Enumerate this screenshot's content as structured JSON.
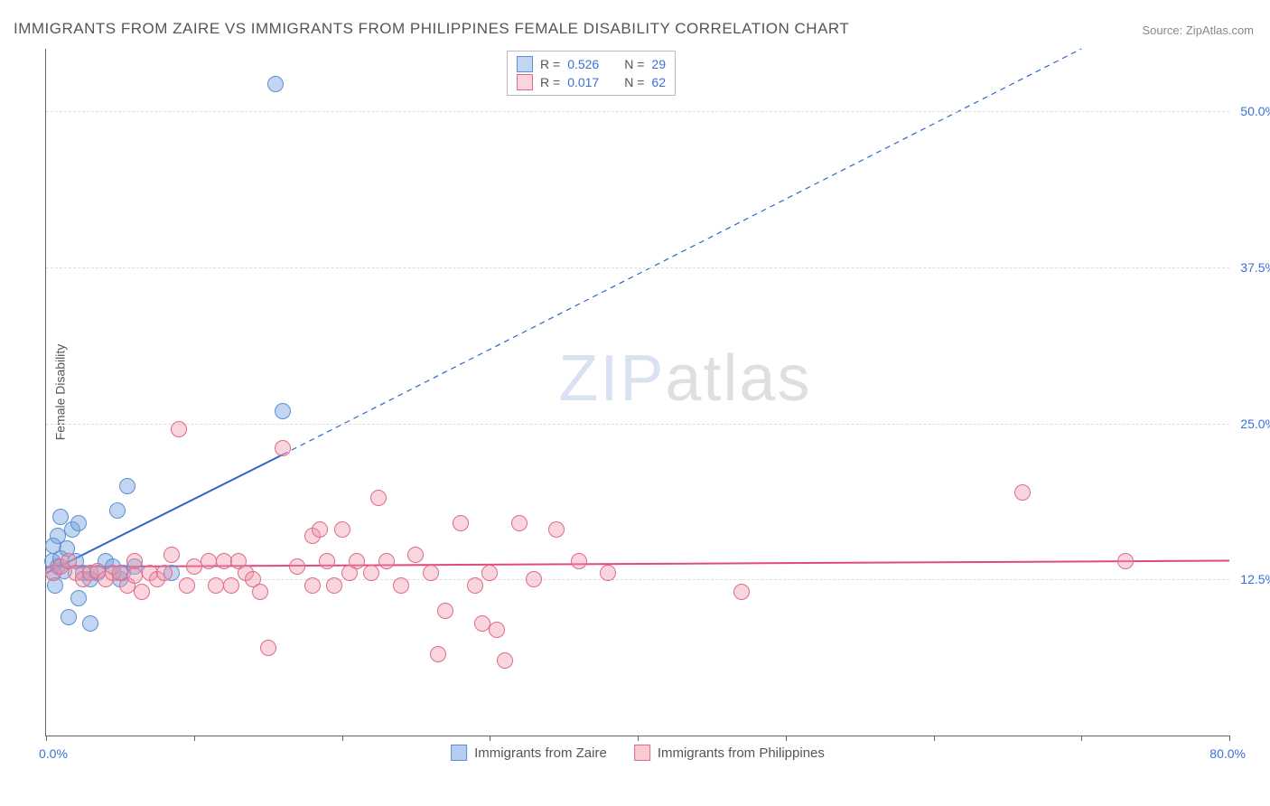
{
  "title": "IMMIGRANTS FROM ZAIRE VS IMMIGRANTS FROM PHILIPPINES FEMALE DISABILITY CORRELATION CHART",
  "source": "Source: ZipAtlas.com",
  "watermark_zip": "ZIP",
  "watermark_atlas": "atlas",
  "y_axis_label": "Female Disability",
  "chart": {
    "type": "scatter",
    "xlim": [
      0,
      80
    ],
    "ylim": [
      0,
      55
    ],
    "x_start_label": "0.0%",
    "x_end_label": "80.0%",
    "x_ticks": [
      0,
      10,
      20,
      30,
      40,
      50,
      60,
      70,
      80
    ],
    "y_gridlines": [
      {
        "value": 12.5,
        "label": "12.5%"
      },
      {
        "value": 25.0,
        "label": "25.0%"
      },
      {
        "value": 37.5,
        "label": "37.5%"
      },
      {
        "value": 50.0,
        "label": "50.0%"
      }
    ],
    "background_color": "#ffffff",
    "grid_color": "#dddddd",
    "axis_color": "#666666",
    "tick_label_color": "#3b6fd6",
    "point_radius": 8,
    "series": [
      {
        "name": "Immigrants from Zaire",
        "fill": "rgba(120,165,225,0.45)",
        "stroke": "#5b8fd6",
        "R_label": "R =",
        "R": "0.526",
        "N_label": "N =",
        "N": "29",
        "reg_color": "#2f66c9",
        "reg_width": 2,
        "reg_solid": {
          "x1": 0,
          "y1": 13.0,
          "x2": 16,
          "y2": 22.5
        },
        "reg_dash": {
          "x1": 16,
          "y1": 22.5,
          "x2": 70,
          "y2": 55
        },
        "points": [
          [
            0.5,
            13.0
          ],
          [
            0.8,
            13.5
          ],
          [
            0.4,
            14.0
          ],
          [
            1.0,
            14.2
          ],
          [
            0.6,
            12.0
          ],
          [
            1.2,
            13.2
          ],
          [
            1.4,
            15.0
          ],
          [
            1.8,
            16.5
          ],
          [
            2.2,
            17.0
          ],
          [
            0.5,
            15.2
          ],
          [
            1.0,
            17.5
          ],
          [
            0.8,
            16.0
          ],
          [
            2.0,
            14.0
          ],
          [
            2.5,
            13.0
          ],
          [
            3.0,
            12.5
          ],
          [
            2.2,
            11.0
          ],
          [
            1.5,
            9.5
          ],
          [
            4.0,
            14.0
          ],
          [
            4.5,
            13.5
          ],
          [
            4.8,
            18.0
          ],
          [
            5.5,
            20.0
          ],
          [
            3.5,
            13.0
          ],
          [
            3.0,
            9.0
          ],
          [
            5.0,
            12.5
          ],
          [
            5.2,
            13.0
          ],
          [
            6.0,
            13.5
          ],
          [
            8.5,
            13.0
          ],
          [
            16.0,
            26.0
          ],
          [
            15.5,
            52.2
          ]
        ]
      },
      {
        "name": "Immigrants from Philippines",
        "fill": "rgba(240,150,170,0.40)",
        "stroke": "#e06a8a",
        "R_label": "R =",
        "R": "0.017",
        "N_label": "N =",
        "N": "62",
        "reg_color": "#e04a80",
        "reg_width": 2,
        "reg_solid": {
          "x1": 0,
          "y1": 13.5,
          "x2": 80,
          "y2": 14.0
        },
        "points": [
          [
            0.5,
            13.0
          ],
          [
            1.0,
            13.5
          ],
          [
            1.5,
            14.0
          ],
          [
            2.0,
            13.0
          ],
          [
            2.5,
            12.5
          ],
          [
            3.0,
            13.0
          ],
          [
            3.5,
            13.2
          ],
          [
            4.0,
            12.5
          ],
          [
            4.5,
            13.0
          ],
          [
            5.0,
            13.0
          ],
          [
            5.5,
            12.0
          ],
          [
            6.0,
            14.0
          ],
          [
            6.0,
            12.8
          ],
          [
            6.5,
            11.5
          ],
          [
            7.0,
            13.0
          ],
          [
            7.5,
            12.5
          ],
          [
            8.0,
            13.0
          ],
          [
            8.5,
            14.5
          ],
          [
            9.0,
            24.5
          ],
          [
            9.5,
            12.0
          ],
          [
            10.0,
            13.5
          ],
          [
            11.0,
            14.0
          ],
          [
            11.5,
            12.0
          ],
          [
            12.0,
            14.0
          ],
          [
            12.5,
            12.0
          ],
          [
            13.0,
            14.0
          ],
          [
            13.5,
            13.0
          ],
          [
            14.0,
            12.5
          ],
          [
            14.5,
            11.5
          ],
          [
            15.0,
            7.0
          ],
          [
            16.0,
            23.0
          ],
          [
            17.0,
            13.5
          ],
          [
            18.0,
            12.0
          ],
          [
            18.0,
            16.0
          ],
          [
            18.5,
            16.5
          ],
          [
            19.0,
            14.0
          ],
          [
            19.5,
            12.0
          ],
          [
            20.0,
            16.5
          ],
          [
            20.5,
            13.0
          ],
          [
            21.0,
            14.0
          ],
          [
            22.0,
            13.0
          ],
          [
            22.5,
            19.0
          ],
          [
            23.0,
            14.0
          ],
          [
            24.0,
            12.0
          ],
          [
            25.0,
            14.5
          ],
          [
            26.0,
            13.0
          ],
          [
            26.5,
            6.5
          ],
          [
            27.0,
            10.0
          ],
          [
            28.0,
            17.0
          ],
          [
            29.0,
            12.0
          ],
          [
            29.5,
            9.0
          ],
          [
            30.0,
            13.0
          ],
          [
            30.5,
            8.5
          ],
          [
            31.0,
            6.0
          ],
          [
            32.0,
            17.0
          ],
          [
            33.0,
            12.5
          ],
          [
            34.5,
            16.5
          ],
          [
            36.0,
            14.0
          ],
          [
            38.0,
            13.0
          ],
          [
            47.0,
            11.5
          ],
          [
            66.0,
            19.5
          ],
          [
            73.0,
            14.0
          ]
        ]
      }
    ]
  },
  "bottom_legend": [
    {
      "label": "Immigrants from Zaire",
      "fill": "rgba(120,165,225,0.55)",
      "stroke": "#5b8fd6"
    },
    {
      "label": "Immigrants from Philippines",
      "fill": "rgba(240,150,170,0.50)",
      "stroke": "#e06a8a"
    }
  ]
}
